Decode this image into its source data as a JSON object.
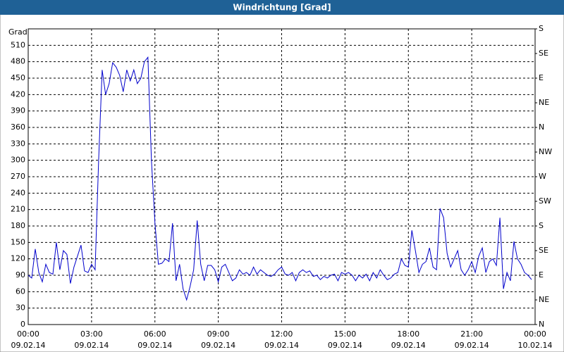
{
  "chart_data": {
    "type": "line",
    "title": "Windrichtung [Grad]",
    "y_label": "Grad",
    "xlim": [
      0,
      1440
    ],
    "xticks": [
      {
        "value": 0,
        "label": "00:00"
      },
      {
        "value": 180,
        "label": "03:00"
      },
      {
        "value": 360,
        "label": "06:00"
      },
      {
        "value": 540,
        "label": "09:00"
      },
      {
        "value": 720,
        "label": "12:00"
      },
      {
        "value": 900,
        "label": "15:00"
      },
      {
        "value": 1080,
        "label": "18:00"
      },
      {
        "value": 1260,
        "label": "21:00"
      },
      {
        "value": 1440,
        "label": "00:00"
      }
    ],
    "xtick_dates": [
      "09.02.14",
      "09.02.14",
      "09.02.14",
      "09.02.14",
      "09.02.14",
      "09.02.14",
      "09.02.14",
      "09.02.14",
      "10.02.14"
    ],
    "ylim": [
      0,
      540
    ],
    "yticks": [
      0,
      30,
      60,
      90,
      120,
      150,
      180,
      210,
      240,
      270,
      300,
      330,
      360,
      390,
      420,
      450,
      480,
      510
    ],
    "y2lim": [
      0,
      540
    ],
    "y2ticks": [
      {
        "value": 0,
        "label": "N"
      },
      {
        "value": 45,
        "label": "NE"
      },
      {
        "value": 90,
        "label": "E"
      },
      {
        "value": 135,
        "label": "SE"
      },
      {
        "value": 180,
        "label": "S"
      },
      {
        "value": 225,
        "label": "SW"
      },
      {
        "value": 270,
        "label": "W"
      },
      {
        "value": 315,
        "label": "NW"
      },
      {
        "value": 360,
        "label": "N"
      },
      {
        "value": 405,
        "label": "NE"
      },
      {
        "value": 450,
        "label": "E"
      },
      {
        "value": 495,
        "label": "SE"
      },
      {
        "value": 540,
        "label": "S"
      }
    ],
    "grid": true,
    "color": "#0000cc",
    "x": [
      0,
      10,
      20,
      30,
      40,
      50,
      60,
      70,
      80,
      90,
      100,
      110,
      120,
      130,
      140,
      150,
      160,
      170,
      180,
      190,
      200,
      210,
      220,
      230,
      240,
      250,
      260,
      270,
      280,
      290,
      300,
      310,
      320,
      330,
      340,
      350,
      360,
      370,
      380,
      390,
      400,
      410,
      420,
      430,
      440,
      450,
      460,
      470,
      480,
      490,
      500,
      510,
      520,
      530,
      540,
      550,
      560,
      570,
      580,
      590,
      600,
      610,
      620,
      630,
      640,
      650,
      660,
      670,
      680,
      690,
      700,
      710,
      720,
      730,
      740,
      750,
      760,
      770,
      780,
      790,
      800,
      810,
      820,
      830,
      840,
      850,
      860,
      870,
      880,
      890,
      900,
      910,
      920,
      930,
      940,
      950,
      960,
      970,
      980,
      990,
      1000,
      1010,
      1020,
      1030,
      1040,
      1050,
      1060,
      1070,
      1080,
      1090,
      1100,
      1110,
      1120,
      1130,
      1140,
      1150,
      1160,
      1170,
      1180,
      1190,
      1200,
      1210,
      1220,
      1230,
      1240,
      1250,
      1260,
      1270,
      1280,
      1290,
      1300,
      1310,
      1320,
      1330,
      1340,
      1350,
      1360,
      1370,
      1380,
      1390,
      1400,
      1410,
      1420,
      1430
    ],
    "values": [
      90,
      85,
      138,
      95,
      78,
      110,
      95,
      92,
      150,
      100,
      135,
      128,
      75,
      105,
      125,
      145,
      98,
      95,
      110,
      100,
      300,
      465,
      420,
      440,
      478,
      470,
      455,
      425,
      465,
      445,
      465,
      440,
      450,
      480,
      488,
      300,
      185,
      110,
      112,
      120,
      115,
      185,
      80,
      110,
      65,
      45,
      70,
      100,
      190,
      110,
      80,
      108,
      108,
      100,
      78,
      105,
      110,
      95,
      80,
      85,
      100,
      92,
      95,
      90,
      105,
      92,
      100,
      95,
      90,
      88,
      92,
      100,
      105,
      92,
      90,
      95,
      80,
      95,
      100,
      95,
      98,
      88,
      90,
      82,
      88,
      85,
      90,
      92,
      80,
      95,
      92,
      95,
      90,
      80,
      90,
      85,
      92,
      80,
      95,
      85,
      100,
      90,
      82,
      85,
      92,
      95,
      120,
      108,
      105,
      172,
      135,
      95,
      110,
      115,
      140,
      105,
      100,
      212,
      195,
      130,
      105,
      120,
      135,
      100,
      90,
      100,
      115,
      95,
      125,
      140,
      95,
      115,
      120,
      108,
      195,
      65,
      95,
      80,
      152,
      120,
      110,
      95,
      90,
      82
    ]
  }
}
